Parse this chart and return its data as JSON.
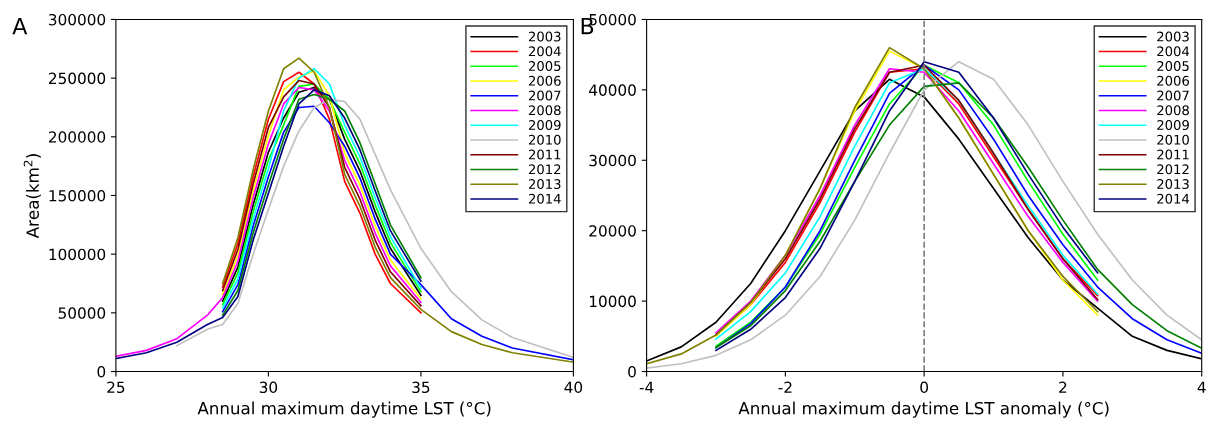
{
  "chart_data": [
    {
      "type": "line",
      "xlabel": "Annual maximum daytime LST (°C)",
      "ylabel": "Area(km$^{2}$)",
      "annotations": [
        "A"
      ],
      "x": [
        25,
        26,
        27,
        28,
        28.5,
        29,
        29.5,
        30,
        30.5,
        31,
        31.5,
        32,
        32.5,
        33,
        33.5,
        34,
        35,
        36,
        37,
        38,
        40
      ],
      "xlim": [
        25,
        40
      ],
      "xticks": [
        25,
        30,
        35,
        40
      ],
      "ylim": [
        0,
        300000
      ],
      "yticks": [
        0,
        50000,
        100000,
        150000,
        200000,
        250000,
        300000
      ],
      "grid": false,
      "legend": "top right",
      "marker": "none",
      "line_style": "solid",
      "series": [
        {
          "name": "2003",
          "color": "#000000",
          "values": [
            null,
            null,
            null,
            null,
            60000,
            89000,
            142000,
            187000,
            216000,
            238000,
            242000,
            232000,
            198000,
            171000,
            136000,
            105000,
            65000,
            null,
            null,
            null,
            null
          ]
        },
        {
          "name": "2004",
          "color": "#ff0000",
          "values": [
            null,
            null,
            null,
            null,
            72000,
            109000,
            166000,
            215000,
            247000,
            255000,
            245000,
            215000,
            162000,
            135000,
            100000,
            75000,
            50000,
            null,
            null,
            null,
            null
          ]
        },
        {
          "name": "2005",
          "color": "#00ff00",
          "values": [
            null,
            null,
            null,
            null,
            57000,
            84000,
            136000,
            180000,
            210000,
            243000,
            245000,
            232000,
            204000,
            177000,
            142000,
            110000,
            68000,
            null,
            null,
            null,
            null
          ]
        },
        {
          "name": "2006",
          "color": "#ffff00",
          "values": [
            null,
            null,
            null,
            null,
            66000,
            99000,
            154000,
            201000,
            240000,
            251000,
            256000,
            235000,
            186000,
            159000,
            124000,
            95000,
            62000,
            null,
            null,
            null,
            null
          ]
        },
        {
          "name": "2007",
          "color": "#0000ff",
          "values": [
            null,
            null,
            null,
            null,
            51000,
            74000,
            124000,
            166000,
            204000,
            225000,
            226000,
            212000,
            192000,
            165000,
            130000,
            100000,
            74000,
            45000,
            30000,
            20000,
            10000
          ]
        },
        {
          "name": "2008",
          "color": "#ff00ff",
          "values": [
            13000,
            18000,
            28000,
            48000,
            63000,
            94000,
            148000,
            194000,
            228000,
            242000,
            240000,
            222000,
            180000,
            153000,
            118000,
            90000,
            59000,
            null,
            null,
            null,
            null
          ]
        },
        {
          "name": "2009",
          "color": "#00ffff",
          "values": [
            null,
            null,
            null,
            null,
            54000,
            79000,
            130000,
            173000,
            222000,
            250000,
            258000,
            245000,
            210000,
            183000,
            148000,
            115000,
            71000,
            null,
            null,
            null,
            null
          ]
        },
        {
          "name": "2010",
          "color": "#c0c0c0",
          "values": [
            null,
            null,
            22000,
            36000,
            40000,
            58000,
            100000,
            138000,
            175000,
            205000,
            225000,
            232000,
            230000,
            215000,
            185000,
            155000,
            105000,
            68000,
            44000,
            29000,
            12000
          ]
        },
        {
          "name": "2011",
          "color": "#800000",
          "values": [
            null,
            null,
            null,
            null,
            69000,
            104000,
            160000,
            208000,
            234000,
            248000,
            245000,
            225000,
            174000,
            147000,
            112000,
            85000,
            56000,
            null,
            null,
            null,
            null
          ]
        },
        {
          "name": "2012",
          "color": "#008000",
          "values": [
            null,
            null,
            null,
            null,
            48000,
            69000,
            118000,
            159000,
            198000,
            232000,
            236000,
            232000,
            222000,
            195000,
            160000,
            125000,
            80000,
            null,
            null,
            null,
            null
          ]
        },
        {
          "name": "2013",
          "color": "#808000",
          "values": [
            null,
            null,
            null,
            null,
            75000,
            114000,
            172000,
            222000,
            258000,
            267000,
            255000,
            225000,
            168000,
            141000,
            106000,
            80000,
            53000,
            34000,
            23000,
            16000,
            8000
          ]
        },
        {
          "name": "2014",
          "color": "#000080",
          "values": [
            11000,
            16000,
            25000,
            40000,
            46000,
            64000,
            112000,
            152000,
            192000,
            228000,
            240000,
            235000,
            216000,
            189000,
            154000,
            120000,
            77000,
            null,
            null,
            null,
            null
          ]
        }
      ]
    },
    {
      "type": "line",
      "xlabel": "Annual maximum daytime LST anomaly (°C)",
      "annotations": [
        "B"
      ],
      "x": [
        -4,
        -3.5,
        -3,
        -2.5,
        -2,
        -1.5,
        -1,
        -0.5,
        0,
        0.5,
        1,
        1.5,
        2,
        2.5,
        3,
        3.5,
        4
      ],
      "xlim": [
        -4,
        4
      ],
      "xticks": [
        -4,
        -2,
        0,
        2,
        4
      ],
      "ylim": [
        0,
        50000
      ],
      "yticks": [
        0,
        10000,
        20000,
        30000,
        40000,
        50000
      ],
      "grid": false,
      "legend": "top right",
      "marker": "none",
      "line_style": "solid",
      "ref_lines": [
        {
          "axis": "x",
          "value": 0,
          "color": "#808080",
          "line_style": "dashed"
        }
      ],
      "series": [
        {
          "name": "2003",
          "color": "#000000",
          "values": [
            1500,
            3500,
            7000,
            12500,
            20000,
            28500,
            37000,
            41500,
            39000,
            33000,
            26000,
            19000,
            13000,
            9000,
            5000,
            3000,
            1800
          ]
        },
        {
          "name": "2004",
          "color": "#ff0000",
          "values": [
            null,
            null,
            5200,
            9500,
            15500,
            24000,
            34000,
            42500,
            43000,
            38000,
            30500,
            23000,
            16000,
            10800,
            null,
            null,
            null
          ]
        },
        {
          "name": "2005",
          "color": "#00ff00",
          "values": [
            null,
            null,
            3600,
            7000,
            12000,
            19500,
            29000,
            38000,
            43500,
            41000,
            35000,
            27000,
            19500,
            13000,
            null,
            null,
            null
          ]
        },
        {
          "name": "2006",
          "color": "#ffff00",
          "values": [
            null,
            null,
            5000,
            9500,
            16500,
            26000,
            37000,
            45500,
            43000,
            36000,
            28000,
            20000,
            13000,
            8000,
            null,
            null,
            null
          ]
        },
        {
          "name": "2007",
          "color": "#0000ff",
          "values": [
            null,
            null,
            3400,
            6800,
            12000,
            20000,
            30000,
            39500,
            43500,
            40000,
            33000,
            25000,
            18000,
            12000,
            7500,
            4500,
            2600
          ]
        },
        {
          "name": "2008",
          "color": "#ff00ff",
          "values": [
            null,
            null,
            5500,
            10000,
            16500,
            25000,
            35000,
            43000,
            42500,
            37000,
            29500,
            22000,
            15500,
            10000,
            null,
            null,
            null
          ]
        },
        {
          "name": "2009",
          "color": "#00ffff",
          "values": [
            null,
            null,
            4600,
            8500,
            14000,
            22000,
            32000,
            41000,
            43000,
            38500,
            31000,
            23500,
            16500,
            11000,
            null,
            null,
            null
          ]
        },
        {
          "name": "2010",
          "color": "#c0c0c0",
          "values": [
            500,
            1100,
            2300,
            4500,
            8000,
            13500,
            21500,
            31000,
            40000,
            44000,
            41500,
            35000,
            27000,
            19500,
            13000,
            8000,
            4500
          ]
        },
        {
          "name": "2011",
          "color": "#800000",
          "values": [
            null,
            null,
            5200,
            9800,
            16000,
            24500,
            34500,
            42500,
            43500,
            38500,
            31000,
            23000,
            16000,
            10200,
            null,
            null,
            null
          ]
        },
        {
          "name": "2012",
          "color": "#008000",
          "values": [
            null,
            null,
            3400,
            6500,
            11500,
            18500,
            27000,
            35000,
            40500,
            41000,
            36000,
            29000,
            21500,
            14500,
            9500,
            5800,
            3300
          ]
        },
        {
          "name": "2013",
          "color": "#808000",
          "values": [
            1100,
            2500,
            5200,
            9800,
            16500,
            26000,
            37500,
            46000,
            43000,
            36000,
            28000,
            20000,
            13500,
            8500,
            null,
            null,
            null
          ]
        },
        {
          "name": "2014",
          "color": "#000080",
          "values": [
            null,
            null,
            3000,
            6000,
            10500,
            17500,
            27000,
            37000,
            44000,
            42500,
            36000,
            28000,
            20500,
            14000,
            null,
            null,
            null
          ]
        }
      ]
    }
  ]
}
